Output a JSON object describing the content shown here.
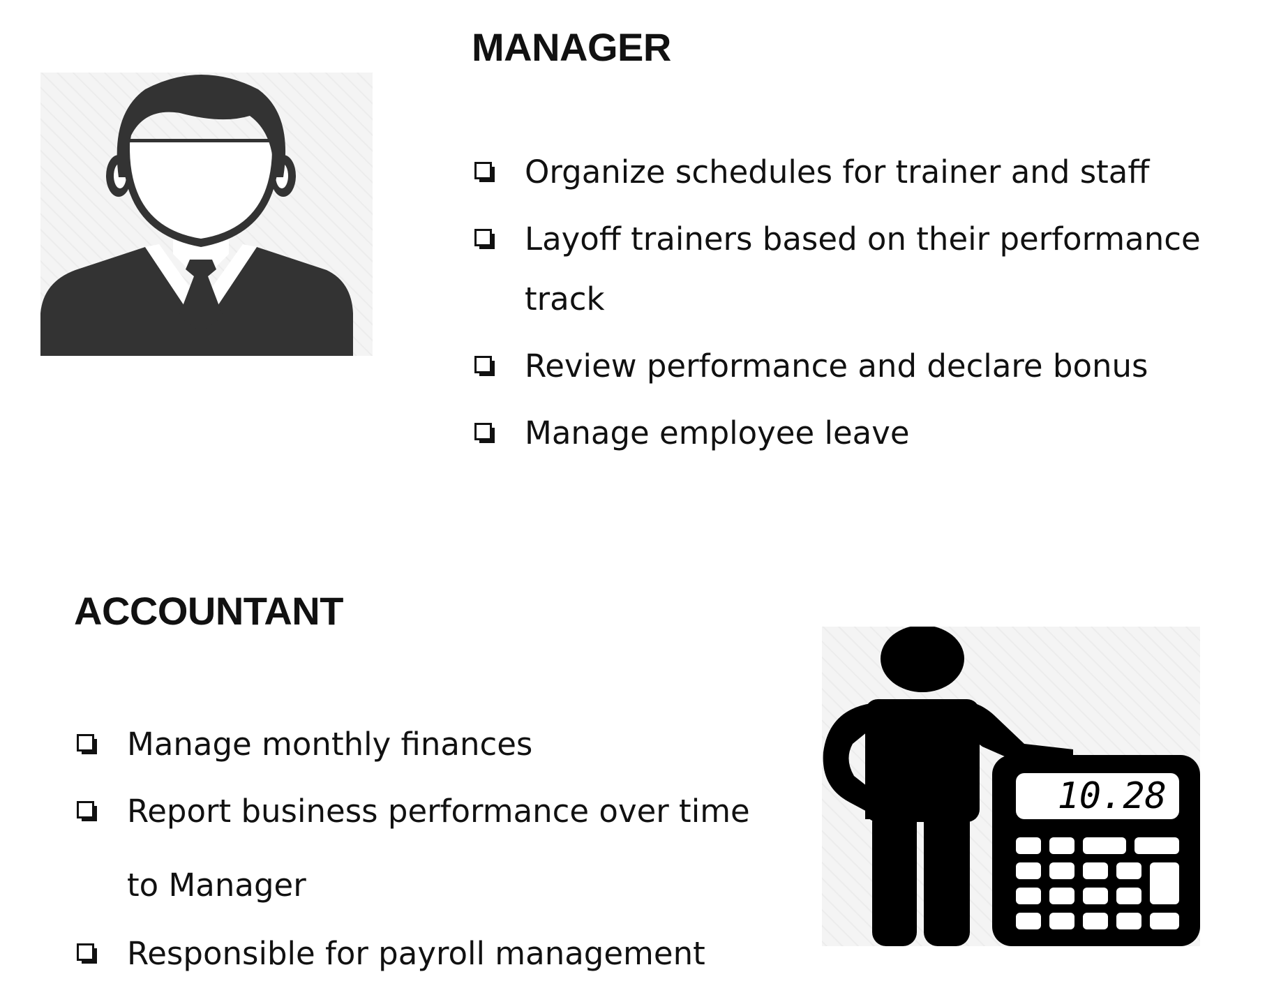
{
  "manager": {
    "title": "MANAGER",
    "illustration_icon": "businessman-with-tie-icon",
    "duties": [
      "Organize schedules for trainer and staff",
      "Layoff trainers based on their performance track",
      "Review performance and declare bonus",
      "Manage employee leave"
    ]
  },
  "accountant": {
    "title": "ACCOUNTANT",
    "illustration_icon": "person-with-calculator-icon",
    "calculator_display": "10.28",
    "duties": [
      "Manage monthly finances",
      "Report business performance over time to Manager",
      "Responsible for payroll management"
    ]
  },
  "bullet_icon": "checkbox-icon",
  "colors": {
    "text": "#111111",
    "icon_dark": "#333333",
    "icon_black": "#000000",
    "icon_background": "#f3f3f3"
  }
}
